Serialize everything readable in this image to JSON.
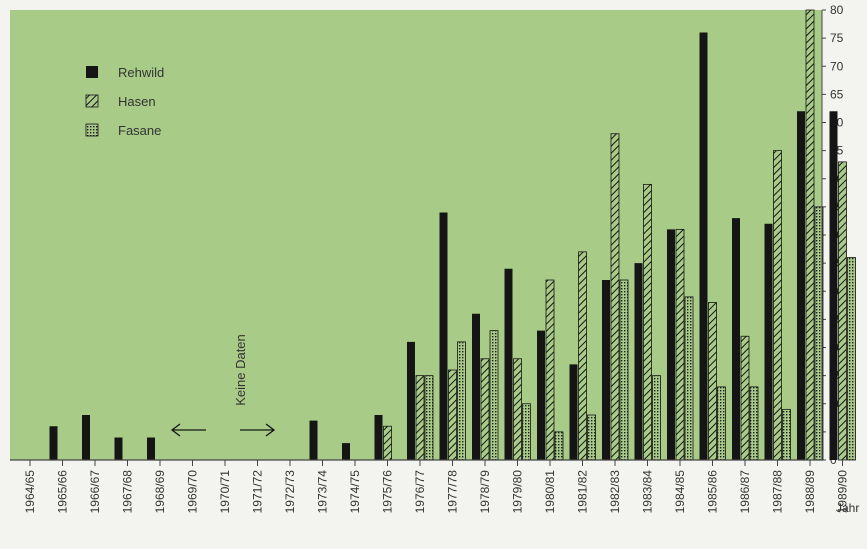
{
  "chart_data": {
    "type": "bar",
    "title": "",
    "xlabel": "Jahr",
    "ylabel": "",
    "ylim": [
      0,
      80
    ],
    "y_ticks": [
      0,
      5,
      10,
      15,
      20,
      25,
      30,
      35,
      40,
      45,
      50,
      55,
      60,
      65,
      70,
      75,
      80
    ],
    "grid": false,
    "legend_position": "top-left",
    "background_color": "#a8cc88",
    "categories": [
      "1964/65",
      "1965/66",
      "1966/67",
      "1967/68",
      "1968/69",
      "1969/70",
      "1970/71",
      "1971/72",
      "1972/73",
      "1973/74",
      "1974/75",
      "1975/76",
      "1976/77",
      "1977/78",
      "1978/79",
      "1979/80",
      "1980/81",
      "1981/82",
      "1982/83",
      "1983/84",
      "1984/85",
      "1985/86",
      "1986/87",
      "1987/88",
      "1988/89",
      "1989/90"
    ],
    "series": [
      {
        "name": "Rehwild",
        "style": "solid",
        "color": "#151515",
        "values": [
          0,
          6,
          8,
          4,
          4,
          null,
          null,
          null,
          null,
          7,
          3,
          8,
          21,
          44,
          26,
          34,
          23,
          17,
          32,
          35,
          41,
          76,
          43,
          42,
          62,
          62
        ]
      },
      {
        "name": "Hasen",
        "style": "hatched",
        "color": "#151515",
        "values": [
          0,
          0,
          0,
          0,
          0,
          null,
          null,
          null,
          null,
          0,
          0,
          6,
          15,
          16,
          18,
          18,
          32,
          37,
          58,
          49,
          41,
          28,
          22,
          55,
          80,
          53
        ]
      },
      {
        "name": "Fasane",
        "style": "stippled",
        "color": "#151515",
        "values": [
          0,
          0,
          0,
          0,
          0,
          null,
          null,
          null,
          null,
          0,
          0,
          0,
          15,
          21,
          23,
          10,
          5,
          8,
          32,
          15,
          29,
          13,
          13,
          9,
          45,
          36
        ]
      }
    ],
    "annotation": {
      "text": "Keine Daten"
    }
  }
}
